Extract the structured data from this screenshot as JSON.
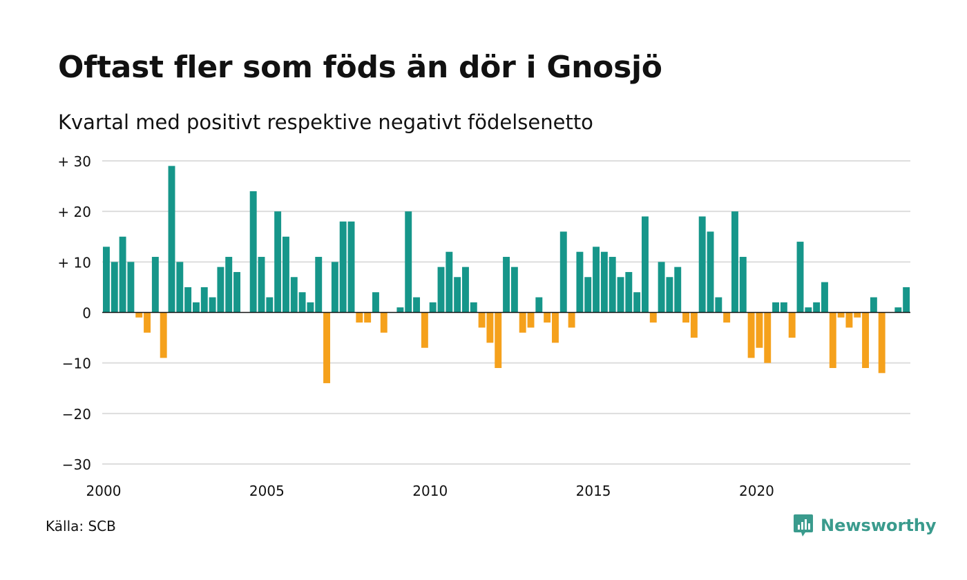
{
  "title": "Oftast fler som föds än dör i Gnosjö",
  "subtitle": "Kvartal med positivt respektive negativt födelsenetto",
  "source": "Källa: SCB",
  "brand": "Newsworthy",
  "colors": {
    "positive": "#16968a",
    "negative": "#f5a11c",
    "grid": "#dddddd",
    "brand": "#3a9b8d"
  },
  "icons": {
    "logo": "bar-chart-speech-bubble-icon"
  },
  "chart_data": {
    "type": "bar",
    "title": "Oftast fler som föds än dör i Gnosjö",
    "subtitle": "Kvartal med positivt respektive negativt födelsenetto",
    "xlabel": "",
    "ylabel": "",
    "ylim": [
      -30,
      30
    ],
    "yticks": [
      30,
      20,
      10,
      0,
      -10,
      -20,
      -30
    ],
    "ytick_labels": [
      "+ 30",
      "+ 20",
      "+ 10",
      "0",
      "−10",
      "−20",
      "−30"
    ],
    "xlim": [
      2000,
      2024.75
    ],
    "xticks": [
      2000,
      2005,
      2010,
      2015,
      2020
    ],
    "xtick_labels": [
      "2000",
      "2005",
      "2010",
      "2015",
      "2020"
    ],
    "grid": true,
    "legend": "none",
    "start_year": 2000,
    "periods_per_year": 4,
    "categories": [
      "2000 K1",
      "2000 K2",
      "2000 K3",
      "2000 K4",
      "2001 K1",
      "2001 K2",
      "2001 K3",
      "2001 K4",
      "2002 K1",
      "2002 K2",
      "2002 K3",
      "2002 K4",
      "2003 K1",
      "2003 K2",
      "2003 K3",
      "2003 K4",
      "2004 K1",
      "2004 K2",
      "2004 K3",
      "2004 K4",
      "2005 K1",
      "2005 K2",
      "2005 K3",
      "2005 K4",
      "2006 K1",
      "2006 K2",
      "2006 K3",
      "2006 K4",
      "2007 K1",
      "2007 K2",
      "2007 K3",
      "2007 K4",
      "2008 K1",
      "2008 K2",
      "2008 K3",
      "2008 K4",
      "2009 K1",
      "2009 K2",
      "2009 K3",
      "2009 K4",
      "2010 K1",
      "2010 K2",
      "2010 K3",
      "2010 K4",
      "2011 K1",
      "2011 K2",
      "2011 K3",
      "2011 K4",
      "2012 K1",
      "2012 K2",
      "2012 K3",
      "2012 K4",
      "2013 K1",
      "2013 K2",
      "2013 K3",
      "2013 K4",
      "2014 K1",
      "2014 K2",
      "2014 K3",
      "2014 K4",
      "2015 K1",
      "2015 K2",
      "2015 K3",
      "2015 K4",
      "2016 K1",
      "2016 K2",
      "2016 K3",
      "2016 K4",
      "2017 K1",
      "2017 K2",
      "2017 K3",
      "2017 K4",
      "2018 K1",
      "2018 K2",
      "2018 K3",
      "2018 K4",
      "2019 K1",
      "2019 K2",
      "2019 K3",
      "2019 K4",
      "2020 K1",
      "2020 K2",
      "2020 K3",
      "2020 K4",
      "2021 K1",
      "2021 K2",
      "2021 K3",
      "2021 K4",
      "2022 K1",
      "2022 K2",
      "2022 K3",
      "2022 K4",
      "2023 K1",
      "2023 K2",
      "2023 K3",
      "2023 K4",
      "2024 K1",
      "2024 K2",
      "2024 K3",
      "2024 K4"
    ],
    "values": [
      13,
      10,
      15,
      10,
      -1,
      -4,
      11,
      -9,
      29,
      10,
      5,
      2,
      5,
      3,
      9,
      11,
      8,
      0,
      24,
      11,
      3,
      20,
      15,
      7,
      4,
      2,
      11,
      -14,
      10,
      18,
      18,
      -2,
      -2,
      4,
      -4,
      0,
      1,
      20,
      3,
      -7,
      2,
      9,
      12,
      7,
      9,
      2,
      -3,
      -6,
      -11,
      11,
      9,
      -4,
      -3,
      3,
      -2,
      -6,
      16,
      -3,
      12,
      7,
      13,
      12,
      11,
      7,
      8,
      4,
      19,
      -2,
      10,
      7,
      9,
      -2,
      -5,
      19,
      16,
      3,
      -2,
      20,
      11,
      -9,
      -7,
      -10,
      2,
      2,
      -5,
      14,
      1,
      2,
      6,
      -11,
      -1,
      -3,
      -1,
      -11,
      3,
      -12,
      0,
      1,
      5,
      0
    ]
  }
}
